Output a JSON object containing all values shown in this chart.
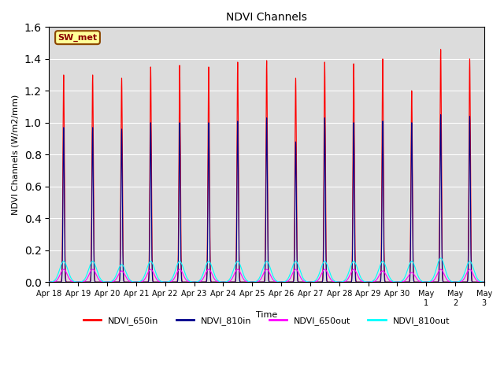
{
  "title": "NDVI Channels",
  "xlabel": "Time",
  "ylabel": "NDVI Channels (W/m2/mm)",
  "ylim": [
    0,
    1.6
  ],
  "n_days": 15,
  "annotation_text": "SW_met",
  "annotation_bg": "#FFFF99",
  "annotation_border": "#8B4500",
  "annotation_text_color": "#8B0000",
  "series": {
    "NDVI_650in": {
      "color": "#FF0000",
      "label": "NDVI_650in",
      "lw": 0.8
    },
    "NDVI_810in": {
      "color": "#00008B",
      "label": "NDVI_810in",
      "lw": 0.8
    },
    "NDVI_650out": {
      "color": "#FF00FF",
      "label": "NDVI_650out",
      "lw": 0.8
    },
    "NDVI_810out": {
      "color": "#00FFFF",
      "label": "NDVI_810out",
      "lw": 0.8
    }
  },
  "peak_650in": [
    1.3,
    1.3,
    1.28,
    1.35,
    1.36,
    1.35,
    1.38,
    1.39,
    1.28,
    1.38,
    1.37,
    1.4,
    1.2,
    1.46,
    1.4
  ],
  "peak_810in": [
    0.97,
    0.97,
    0.96,
    1.0,
    1.0,
    1.0,
    1.01,
    1.03,
    0.88,
    1.03,
    1.0,
    1.01,
    1.0,
    1.05,
    1.04
  ],
  "peak_650out": [
    0.08,
    0.08,
    0.07,
    0.08,
    0.08,
    0.08,
    0.08,
    0.08,
    0.08,
    0.08,
    0.08,
    0.07,
    0.06,
    0.08,
    0.08
  ],
  "peak_810out": [
    0.13,
    0.13,
    0.11,
    0.13,
    0.13,
    0.13,
    0.13,
    0.13,
    0.13,
    0.13,
    0.13,
    0.13,
    0.13,
    0.15,
    0.13
  ],
  "x_tick_labels": [
    "Apr 18",
    "Apr 19",
    "Apr 20",
    "Apr 21",
    "Apr 22",
    "Apr 23",
    "Apr 24",
    "Apr 25",
    "Apr 26",
    "Apr 27",
    "Apr 28",
    "Apr 29",
    "Apr 30",
    "May 1",
    "May 2",
    "May 3"
  ],
  "background_color": "#DCDCDC",
  "fig_color": "#FFFFFF",
  "grid_color": "#FFFFFF"
}
